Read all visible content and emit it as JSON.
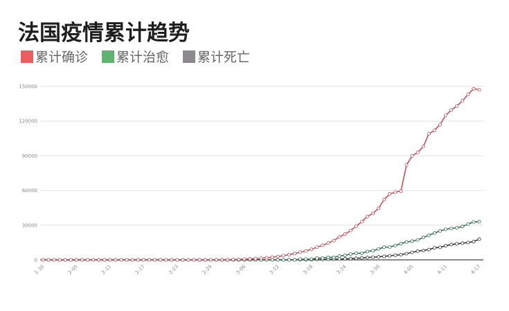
{
  "chart_data": {
    "type": "line",
    "title": "法国疫情累计趋势",
    "xlabel": "",
    "ylabel": "",
    "ylim": [
      0,
      150000
    ],
    "y_ticks": [
      "0",
      "30000",
      "60000",
      "90000",
      "120000",
      "150000"
    ],
    "x_ticks": [
      "1-30",
      "2-05",
      "2-11",
      "2-17",
      "2-23",
      "2-29",
      "3-06",
      "3-12",
      "3-18",
      "3-24",
      "3-30",
      "4-05",
      "4-11",
      "4-17"
    ],
    "grid": true,
    "legend_position": "top-left",
    "categories": [
      "1-30",
      "1-31",
      "2-01",
      "2-02",
      "2-03",
      "2-04",
      "2-05",
      "2-06",
      "2-07",
      "2-08",
      "2-09",
      "2-10",
      "2-11",
      "2-12",
      "2-13",
      "2-14",
      "2-15",
      "2-16",
      "2-17",
      "2-18",
      "2-19",
      "2-20",
      "2-21",
      "2-22",
      "2-23",
      "2-24",
      "2-25",
      "2-26",
      "2-27",
      "2-28",
      "2-29",
      "3-01",
      "3-02",
      "3-03",
      "3-04",
      "3-05",
      "3-06",
      "3-07",
      "3-08",
      "3-09",
      "3-10",
      "3-11",
      "3-12",
      "3-13",
      "3-14",
      "3-15",
      "3-16",
      "3-17",
      "3-18",
      "3-19",
      "3-20",
      "3-21",
      "3-22",
      "3-23",
      "3-24",
      "3-25",
      "3-26",
      "3-27",
      "3-28",
      "3-29",
      "3-30",
      "3-31",
      "4-01",
      "4-02",
      "4-03",
      "4-04",
      "4-05",
      "4-06",
      "4-07",
      "4-08",
      "4-09",
      "4-10",
      "4-11",
      "4-12",
      "4-13",
      "4-14",
      "4-15",
      "4-16",
      "4-17"
    ],
    "series": [
      {
        "name": "累计确诊",
        "color": "#ec5d5d",
        "line_color": "#c2505c",
        "values": [
          5,
          6,
          6,
          6,
          6,
          6,
          6,
          6,
          11,
          11,
          11,
          11,
          11,
          11,
          11,
          11,
          12,
          12,
          12,
          12,
          12,
          12,
          12,
          12,
          12,
          12,
          14,
          18,
          38,
          57,
          100,
          130,
          191,
          212,
          285,
          423,
          613,
          949,
          1126,
          1412,
          1784,
          2281,
          2876,
          3661,
          4499,
          5423,
          6633,
          7730,
          9134,
          10995,
          12612,
          14459,
          16689,
          19856,
          22304,
          25233,
          29155,
          32964,
          37575,
          40174,
          44550,
          52128,
          56989,
          58500,
          59500,
          82000,
          90000,
          93000,
          98000,
          109000,
          112000,
          117000,
          125000,
          129500,
          133000,
          137500,
          143000,
          148000,
          147000
        ]
      },
      {
        "name": "累计治愈",
        "color": "#5fb26f",
        "line_color": "#2f6f4f",
        "values": [
          0,
          0,
          0,
          0,
          0,
          0,
          0,
          0,
          0,
          0,
          0,
          0,
          0,
          0,
          4,
          4,
          4,
          4,
          4,
          4,
          4,
          4,
          4,
          11,
          11,
          11,
          11,
          12,
          12,
          12,
          12,
          12,
          12,
          12,
          12,
          12,
          12,
          12,
          12,
          12,
          12,
          12,
          12,
          12,
          12,
          12,
          602,
          602,
          602,
          1587,
          1587,
          2200,
          2200,
          3281,
          3900,
          4948,
          5700,
          5700,
          7202,
          7927,
          9444,
          10935,
          11053,
          12428,
          14008,
          15438,
          16183,
          17250,
          19337,
          21254,
          23206,
          24932,
          26391,
          27186,
          27718,
          28805,
          30955,
          32812,
          33000
        ]
      },
      {
        "name": "累计死亡",
        "color": "#8c8a8f",
        "line_color": "#333333",
        "values": [
          0,
          0,
          0,
          0,
          0,
          0,
          0,
          0,
          0,
          0,
          0,
          0,
          0,
          0,
          1,
          1,
          1,
          1,
          1,
          1,
          1,
          1,
          1,
          1,
          1,
          1,
          1,
          1,
          1,
          1,
          1,
          2,
          2,
          3,
          4,
          7,
          9,
          11,
          19,
          19,
          33,
          48,
          48,
          79,
          91,
          91,
          148,
          148,
          175,
          244,
          372,
          450,
          562,
          674,
          860,
          1100,
          1331,
          1696,
          1995,
          2314,
          2606,
          3024,
          3523,
          4032,
          4503,
          5387,
          6507,
          7560,
          8064,
          8911,
          10328,
          10869,
          12210,
          13197,
          13832,
          14393,
          14967,
          15729,
          17920
        ]
      }
    ]
  }
}
